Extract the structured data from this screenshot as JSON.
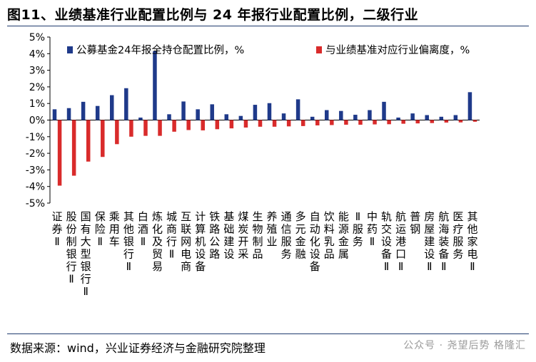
{
  "header": {
    "title": "图11、业绩基准行业配置比例与 24 年报行业配置比例，二级行业"
  },
  "footer": {
    "source": "数据来源：wind，兴业证券经济与金融研究院整理",
    "watermark": "公众号 · 尧望后势 格隆汇"
  },
  "colors": {
    "series1": "#1f3a8a",
    "series2": "#d92b2b"
  },
  "chart_data": {
    "type": "bar",
    "y_tick_labels": [
      "5%",
      "4%",
      "3%",
      "2%",
      "1%",
      "0%",
      "-1%",
      "-2%",
      "-3%",
      "-4%",
      "-5%"
    ],
    "ylim": [
      -5,
      5
    ],
    "legend_position": "top",
    "categories": [
      "证券Ⅱ",
      "股份制银行Ⅱ",
      "国有大型银行Ⅱ",
      "保险Ⅱ",
      "乘用车",
      "其他银行Ⅱ",
      "白酒Ⅱ",
      "炼化及贸易",
      "城商行Ⅱ",
      "互联网电商",
      "计算机设备",
      "铁路公路",
      "基础建设",
      "煤炭开采",
      "生物制品",
      "养殖业",
      "通信服务",
      "多元金融",
      "自动化设备",
      "饮料乳品",
      "能源金属",
      "Ⅱ服务",
      "中药Ⅱ",
      "轨交设备Ⅱ",
      "航运港口Ⅱ",
      "普钢",
      "房屋建设Ⅱ",
      "航海装备Ⅱ",
      "医疗服务",
      "其他家电Ⅱ"
    ],
    "series": [
      {
        "name": "公募基金24年报全持仓配置比例，%",
        "values": [
          0.65,
          0.72,
          1.1,
          0.85,
          1.5,
          1.92,
          0.15,
          4.15,
          0.35,
          1.12,
          0.65,
          0.95,
          0.35,
          0.25,
          0.92,
          1.02,
          0.4,
          1.25,
          0.2,
          0.6,
          0.55,
          0.32,
          0.6,
          1.1,
          0.15,
          0.4,
          0.3,
          0.2,
          0.3,
          1.68
        ]
      },
      {
        "name": "与业绩基准对应行业偏离度，%",
        "values": [
          -3.95,
          -3.35,
          -2.5,
          -2.22,
          -1.45,
          -1.0,
          -0.95,
          -0.95,
          -0.7,
          -0.6,
          -0.62,
          -0.55,
          -0.5,
          -0.45,
          -0.4,
          -0.4,
          -0.38,
          -0.36,
          -0.32,
          -0.3,
          -0.28,
          -0.28,
          -0.26,
          -0.25,
          -0.22,
          -0.2,
          -0.18,
          -0.15,
          -0.14,
          -0.1
        ]
      }
    ]
  }
}
